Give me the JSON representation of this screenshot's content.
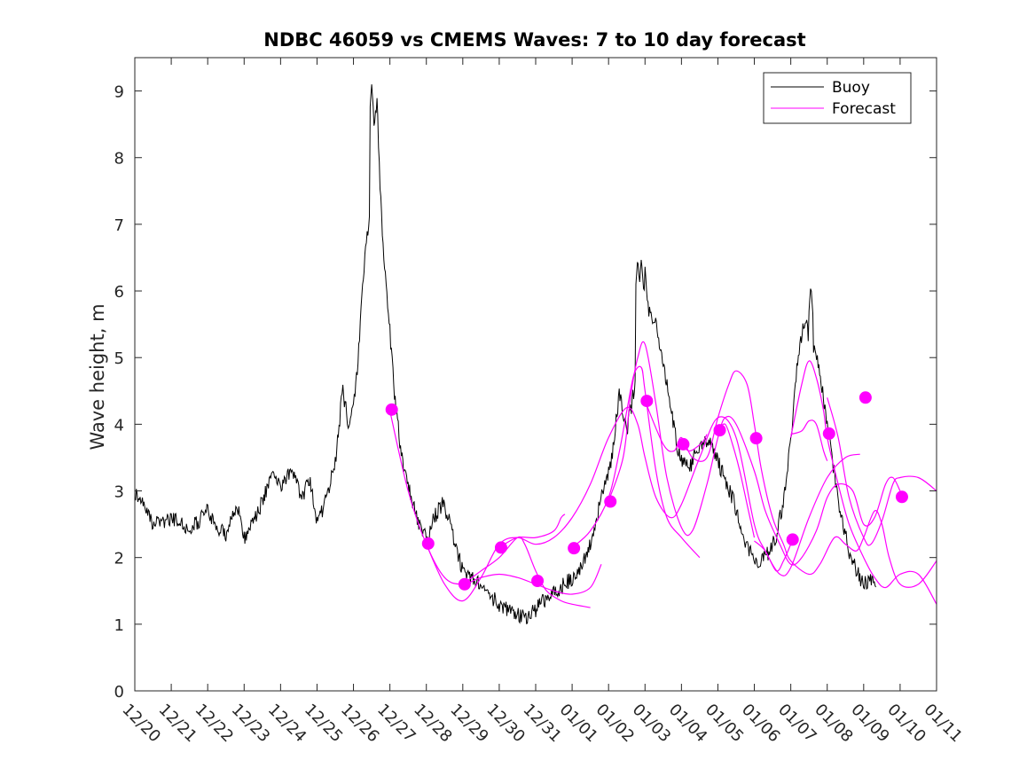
{
  "chart_data": {
    "type": "line",
    "title": "NDBC 46059 vs CMEMS Waves: 7 to 10 day forecast",
    "xlabel": "",
    "ylabel": "Wave height, m",
    "xlim": [
      0,
      22
    ],
    "ylim": [
      0,
      9.5
    ],
    "yticks": [
      0,
      1,
      2,
      3,
      4,
      5,
      6,
      7,
      8,
      9
    ],
    "ytick_labels": [
      "0",
      "1",
      "2",
      "3",
      "4",
      "5",
      "6",
      "7",
      "8",
      "9"
    ],
    "xticks": [
      0,
      1,
      2,
      3,
      4,
      5,
      6,
      7,
      8,
      9,
      10,
      11,
      12,
      13,
      14,
      15,
      16,
      17,
      18,
      19,
      20,
      21,
      22
    ],
    "xtick_labels": [
      "12/20",
      "12/21",
      "12/22",
      "12/23",
      "12/24",
      "12/25",
      "12/26",
      "12/27",
      "12/28",
      "12/29",
      "12/30",
      "12/31",
      "01/01",
      "01/02",
      "01/03",
      "01/04",
      "01/05",
      "01/06",
      "01/07",
      "01/08",
      "01/09",
      "01/10",
      "01/11"
    ],
    "x_unit": "days since 12/20",
    "legend": {
      "location": "top-right",
      "entries": [
        {
          "label": "Buoy",
          "color": "#000000"
        },
        {
          "label": "Forecast",
          "color": "#ff00ff"
        }
      ]
    },
    "series": [
      {
        "name": "Buoy",
        "color": "#000000",
        "noise": 0.12,
        "points": [
          [
            0,
            3.0
          ],
          [
            0.5,
            2.5
          ],
          [
            1,
            2.6
          ],
          [
            1.5,
            2.4
          ],
          [
            2,
            2.7
          ],
          [
            2.5,
            2.3
          ],
          [
            2.8,
            2.8
          ],
          [
            3,
            2.3
          ],
          [
            3.4,
            2.7
          ],
          [
            3.8,
            3.3
          ],
          [
            4,
            3.1
          ],
          [
            4.3,
            3.3
          ],
          [
            4.6,
            2.9
          ],
          [
            4.8,
            3.2
          ],
          [
            5,
            2.5
          ],
          [
            5.2,
            2.8
          ],
          [
            5.5,
            3.4
          ],
          [
            5.7,
            4.5
          ],
          [
            5.9,
            3.9
          ],
          [
            6.1,
            4.8
          ],
          [
            6.3,
            6.4
          ],
          [
            6.45,
            7.2
          ],
          [
            6.55,
            8.5
          ],
          [
            6.65,
            8.8
          ],
          [
            6.75,
            7.3
          ],
          [
            6.85,
            6.4
          ],
          [
            7,
            5.4
          ],
          [
            7.15,
            4.3
          ],
          [
            7.35,
            3.4
          ],
          [
            7.6,
            2.9
          ],
          [
            7.8,
            2.5
          ],
          [
            8,
            2.3
          ],
          [
            8.2,
            2.6
          ],
          [
            8.45,
            2.8
          ],
          [
            8.6,
            2.6
          ],
          [
            8.8,
            2.2
          ],
          [
            9,
            1.8
          ],
          [
            9.3,
            1.7
          ],
          [
            9.6,
            1.5
          ],
          [
            10,
            1.3
          ],
          [
            10.4,
            1.15
          ],
          [
            10.8,
            1.1
          ],
          [
            11.2,
            1.35
          ],
          [
            11.6,
            1.5
          ],
          [
            12,
            1.7
          ],
          [
            12.3,
            1.9
          ],
          [
            12.55,
            2.3
          ],
          [
            12.8,
            2.9
          ],
          [
            13.1,
            3.5
          ],
          [
            13.3,
            4.5
          ],
          [
            13.5,
            3.9
          ],
          [
            13.7,
            4.5
          ],
          [
            13.9,
            5.2
          ],
          [
            14,
            6.3
          ],
          [
            14.1,
            5.7
          ],
          [
            14.3,
            5.5
          ],
          [
            14.6,
            4.6
          ],
          [
            14.9,
            3.6
          ],
          [
            15.2,
            3.3
          ],
          [
            15.5,
            3.7
          ],
          [
            15.8,
            3.7
          ],
          [
            16.1,
            3.3
          ],
          [
            16.4,
            2.9
          ],
          [
            16.7,
            2.3
          ],
          [
            17,
            1.95
          ],
          [
            17.3,
            2.0
          ],
          [
            17.6,
            2.3
          ],
          [
            17.85,
            3.0
          ],
          [
            18,
            3.8
          ],
          [
            18.2,
            5.0
          ],
          [
            18.4,
            5.6
          ],
          [
            18.5,
            5.3
          ],
          [
            18.7,
            5.1
          ],
          [
            18.9,
            4.4
          ],
          [
            19.1,
            3.6
          ],
          [
            19.35,
            2.7
          ],
          [
            19.6,
            2.1
          ],
          [
            19.8,
            1.8
          ],
          [
            20,
            1.6
          ],
          [
            20.2,
            1.65
          ],
          [
            20.35,
            1.6
          ]
        ],
        "peaks": [
          [
            6.5,
            9.1
          ],
          [
            13.8,
            6.5
          ],
          [
            13.9,
            6.5
          ],
          [
            18.55,
            6.1
          ]
        ]
      },
      {
        "name": "Forecast 1",
        "color": "#ff00ff",
        "points": [
          [
            7,
            4.2
          ],
          [
            7.5,
            3.0
          ],
          [
            8,
            2.2
          ],
          [
            8.5,
            1.7
          ],
          [
            9,
            1.6
          ],
          [
            9.5,
            1.7
          ],
          [
            10,
            1.75
          ],
          [
            10.5,
            1.7
          ],
          [
            11,
            1.6
          ],
          [
            11.5,
            1.5
          ],
          [
            12,
            1.45
          ],
          [
            12.5,
            1.55
          ],
          [
            12.8,
            1.9
          ]
        ]
      },
      {
        "name": "Forecast 2",
        "color": "#ff00ff",
        "points": [
          [
            8,
            2.2
          ],
          [
            8.5,
            1.6
          ],
          [
            9,
            1.35
          ],
          [
            9.5,
            1.7
          ],
          [
            10,
            2.2
          ],
          [
            10.5,
            2.3
          ],
          [
            11,
            2.2
          ],
          [
            11.5,
            2.3
          ],
          [
            12,
            2.6
          ],
          [
            12.5,
            3.1
          ],
          [
            13,
            3.8
          ],
          [
            13.5,
            4.25
          ],
          [
            13.8,
            4.0
          ],
          [
            14,
            3.5
          ],
          [
            14.3,
            2.9
          ],
          [
            14.7,
            2.6
          ],
          [
            15,
            2.8
          ],
          [
            15.5,
            3.5
          ],
          [
            16,
            4.1
          ],
          [
            16.5,
            3.8
          ],
          [
            17,
            2.5
          ],
          [
            17.3,
            2.1
          ],
          [
            17.7,
            1.75
          ],
          [
            18,
            1.85
          ],
          [
            18.5,
            2.6
          ],
          [
            19,
            3.2
          ],
          [
            19.5,
            3.5
          ],
          [
            19.9,
            3.55
          ]
        ]
      },
      {
        "name": "Forecast 3",
        "color": "#ff00ff",
        "points": [
          [
            9,
            1.6
          ],
          [
            9.5,
            1.8
          ],
          [
            10,
            2.0
          ],
          [
            10.5,
            2.3
          ],
          [
            10.7,
            2.2
          ],
          [
            11,
            1.8
          ],
          [
            11.3,
            1.5
          ],
          [
            11.7,
            1.35
          ],
          [
            12,
            1.3
          ],
          [
            12.5,
            1.25
          ]
        ]
      },
      {
        "name": "Forecast 4",
        "color": "#ff00ff",
        "points": [
          [
            10,
            2.15
          ],
          [
            10.5,
            2.3
          ],
          [
            11,
            2.3
          ],
          [
            11.5,
            2.4
          ],
          [
            11.7,
            2.6
          ],
          [
            11.8,
            2.65
          ]
        ]
      },
      {
        "name": "Forecast 5",
        "color": "#ff00ff",
        "points": [
          [
            12,
            2.15
          ],
          [
            12.5,
            2.4
          ],
          [
            13,
            2.9
          ],
          [
            13.3,
            3.6
          ],
          [
            13.5,
            4.2
          ],
          [
            13.7,
            4.75
          ],
          [
            13.9,
            4.85
          ],
          [
            14,
            4.5
          ],
          [
            14.3,
            3.3
          ],
          [
            14.6,
            2.6
          ],
          [
            15,
            2.3
          ],
          [
            15.5,
            2.0
          ]
        ]
      },
      {
        "name": "Forecast 6",
        "color": "#ff00ff",
        "points": [
          [
            13,
            2.85
          ],
          [
            13.4,
            3.5
          ],
          [
            13.6,
            4.4
          ],
          [
            13.8,
            5.0
          ],
          [
            14,
            5.2
          ],
          [
            14.3,
            4.3
          ],
          [
            14.6,
            3.2
          ],
          [
            15,
            2.45
          ],
          [
            15.3,
            2.4
          ],
          [
            15.7,
            3.1
          ],
          [
            16,
            3.8
          ],
          [
            16.2,
            4.1
          ],
          [
            16.5,
            4.0
          ],
          [
            17,
            3.3
          ],
          [
            17.3,
            2.7
          ],
          [
            17.7,
            2.2
          ],
          [
            18,
            1.9
          ],
          [
            18.3,
            2.0
          ],
          [
            18.7,
            2.4
          ],
          [
            19,
            2.9
          ],
          [
            19.3,
            3.1
          ],
          [
            19.7,
            3.0
          ],
          [
            20,
            2.5
          ],
          [
            20.3,
            2.6
          ],
          [
            20.6,
            3.1
          ],
          [
            20.8,
            3.2
          ],
          [
            21,
            3.0
          ]
        ]
      },
      {
        "name": "Forecast 7",
        "color": "#ff00ff",
        "points": [
          [
            14,
            4.35
          ],
          [
            14.5,
            3.7
          ],
          [
            14.8,
            3.6
          ],
          [
            15,
            3.8
          ],
          [
            15.3,
            3.5
          ],
          [
            15.7,
            3.5
          ],
          [
            16,
            4.1
          ],
          [
            16.3,
            4.6
          ],
          [
            16.5,
            4.8
          ],
          [
            16.8,
            4.6
          ],
          [
            17,
            4.0
          ],
          [
            17.2,
            3.3
          ],
          [
            17.5,
            2.6
          ],
          [
            17.8,
            2.2
          ],
          [
            18,
            1.95
          ],
          [
            18.5,
            1.75
          ],
          [
            18.8,
            1.9
          ],
          [
            19.2,
            2.3
          ],
          [
            19.5,
            2.2
          ],
          [
            19.8,
            2.1
          ],
          [
            20,
            2.3
          ],
          [
            20.3,
            2.7
          ],
          [
            20.5,
            2.5
          ],
          [
            20.7,
            2.0
          ],
          [
            21,
            1.6
          ],
          [
            21.5,
            1.6
          ],
          [
            22,
            1.95
          ]
        ]
      },
      {
        "name": "Forecast 8",
        "color": "#ff00ff",
        "points": [
          [
            15,
            3.7
          ],
          [
            15.2,
            3.6
          ],
          [
            15.4,
            3.65
          ],
          [
            15.6,
            3.75
          ],
          [
            15.7,
            3.85
          ]
        ]
      },
      {
        "name": "Forecast 9",
        "color": "#ff00ff",
        "points": [
          [
            16,
            3.9
          ],
          [
            16.2,
            4.0
          ],
          [
            16.4,
            3.7
          ],
          [
            16.6,
            3.3
          ],
          [
            16.8,
            2.8
          ],
          [
            17,
            2.3
          ]
        ]
      },
      {
        "name": "Forecast 10",
        "color": "#ff00ff",
        "points": [
          [
            17,
            2.25
          ],
          [
            17.3,
            2.1
          ],
          [
            17.6,
            1.8
          ],
          [
            17.8,
            1.95
          ],
          [
            18,
            2.2
          ]
        ]
      },
      {
        "name": "Forecast 11",
        "color": "#ff00ff",
        "points": [
          [
            18,
            3.8
          ],
          [
            18.3,
            4.6
          ],
          [
            18.5,
            4.95
          ],
          [
            18.7,
            4.7
          ],
          [
            18.9,
            4.2
          ],
          [
            19,
            3.8
          ],
          [
            19.3,
            3.1
          ],
          [
            19.6,
            2.5
          ],
          [
            20,
            2.0
          ],
          [
            20.3,
            1.7
          ],
          [
            20.6,
            1.55
          ],
          [
            21,
            1.75
          ],
          [
            21.5,
            1.75
          ],
          [
            22,
            1.3
          ]
        ]
      },
      {
        "name": "Forecast 12",
        "color": "#ff00ff",
        "points": [
          [
            18,
            3.85
          ],
          [
            18.3,
            3.9
          ],
          [
            18.5,
            4.05
          ],
          [
            18.7,
            4.0
          ],
          [
            18.9,
            3.6
          ],
          [
            19,
            3.45
          ]
        ]
      },
      {
        "name": "Forecast 13",
        "color": "#ff00ff",
        "points": [
          [
            19,
            4.4
          ],
          [
            19.3,
            3.8
          ],
          [
            19.6,
            2.9
          ],
          [
            20,
            2.3
          ],
          [
            20.2,
            2.2
          ],
          [
            20.5,
            2.55
          ],
          [
            20.8,
            3.1
          ],
          [
            21,
            3.2
          ],
          [
            21.5,
            3.2
          ],
          [
            22,
            3.0
          ]
        ]
      }
    ],
    "markers": {
      "name": "Forecast initial points",
      "color": "#ff00ff",
      "points": [
        [
          7.05,
          4.22
        ],
        [
          8.05,
          2.21
        ],
        [
          9.05,
          1.6
        ],
        [
          10.05,
          2.15
        ],
        [
          11.05,
          1.65
        ],
        [
          12.05,
          2.14
        ],
        [
          13.05,
          2.84
        ],
        [
          14.05,
          4.35
        ],
        [
          15.05,
          3.7
        ],
        [
          16.05,
          3.91
        ],
        [
          17.05,
          3.79
        ],
        [
          18.05,
          2.27
        ],
        [
          19.05,
          3.86
        ],
        [
          20.05,
          4.4
        ],
        [
          21.05,
          2.91
        ]
      ]
    }
  }
}
